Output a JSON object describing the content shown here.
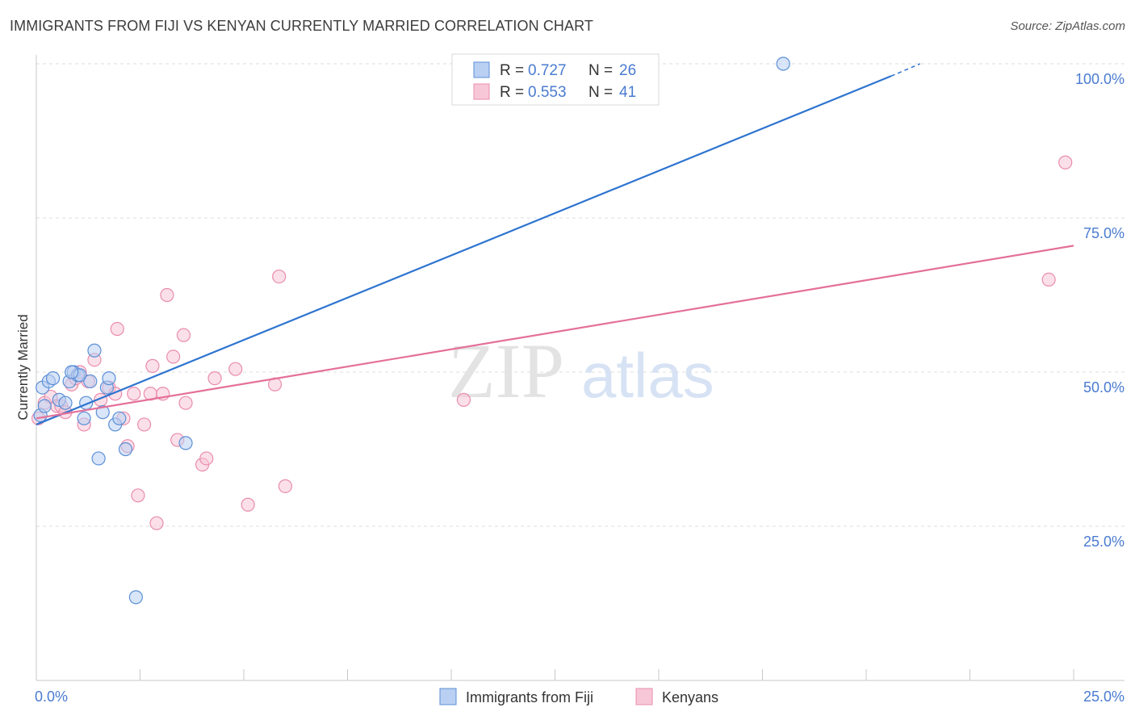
{
  "header": {
    "title": "IMMIGRANTS FROM FIJI VS KENYAN CURRENTLY MARRIED CORRELATION CHART",
    "source": "Source: ZipAtlas.com"
  },
  "watermark": {
    "zip": "ZIP",
    "atlas": "atlas"
  },
  "colors": {
    "fiji": "#5b8fd6",
    "fiji_fill": "#b9d0f3",
    "fiji_line": "#2e74d0",
    "kenyan": "#ea8cab",
    "kenyan_fill": "#f8c7d7",
    "kenyan_line": "#e4709a",
    "tick_text": "#4a7bd0"
  },
  "legend": {
    "rows": [
      {
        "r_label": "R =",
        "r_value": "0.727",
        "n_label": "N =",
        "n_value": "26"
      },
      {
        "r_label": "R =",
        "r_value": "0.553",
        "n_label": "N =",
        "n_value": "41"
      }
    ]
  },
  "bottom_legend": {
    "fiji_label": "Immigrants from Fiji",
    "kenyan_label": "Kenyans"
  },
  "chart_data": {
    "type": "scatter",
    "title": "IMMIGRANTS FROM FIJI VS KENYAN CURRENTLY MARRIED CORRELATION CHART",
    "xlabel": "",
    "ylabel": "Currently Married",
    "xlim": [
      0,
      25
    ],
    "ylim": [
      0,
      105
    ],
    "x_tick_labels": [
      {
        "value": 0,
        "label": "0.0%"
      },
      {
        "value": 25,
        "label": "25.0%"
      }
    ],
    "y_tick_labels": [
      {
        "value": 25,
        "label": "25.0%"
      },
      {
        "value": 50,
        "label": "50.0%"
      },
      {
        "value": 75,
        "label": "75.0%"
      },
      {
        "value": 100,
        "label": "100.0%"
      }
    ],
    "series": [
      {
        "name": "Immigrants from Fiji",
        "r": 0.727,
        "n": 26,
        "points": [
          [
            0.15,
            47.5
          ],
          [
            0.3,
            48.5
          ],
          [
            0.4,
            49.0
          ],
          [
            0.55,
            45.5
          ],
          [
            0.7,
            45.0
          ],
          [
            0.8,
            48.5
          ],
          [
            0.9,
            50.0
          ],
          [
            1.0,
            49.5
          ],
          [
            1.05,
            49.5
          ],
          [
            1.15,
            42.5
          ],
          [
            1.2,
            45.0
          ],
          [
            1.3,
            48.5
          ],
          [
            1.4,
            53.5
          ],
          [
            1.5,
            36.0
          ],
          [
            1.6,
            43.5
          ],
          [
            1.7,
            47.5
          ],
          [
            1.75,
            49.0
          ],
          [
            1.9,
            41.5
          ],
          [
            2.0,
            42.5
          ],
          [
            2.15,
            37.5
          ],
          [
            2.4,
            13.5
          ],
          [
            3.6,
            38.5
          ],
          [
            0.1,
            43.0
          ],
          [
            0.2,
            44.5
          ],
          [
            0.85,
            50.0
          ],
          [
            18.0,
            100.0
          ]
        ],
        "trend": {
          "x": [
            0,
            20.6
          ],
          "y": [
            41.5,
            98.0
          ],
          "dashed_to": {
            "x": 21.3,
            "y": 100.0
          }
        }
      },
      {
        "name": "Kenyans",
        "r": 0.553,
        "n": 41,
        "points": [
          [
            0.05,
            42.5
          ],
          [
            0.2,
            45.0
          ],
          [
            0.35,
            46.0
          ],
          [
            0.5,
            44.5
          ],
          [
            0.6,
            44.5
          ],
          [
            0.7,
            43.5
          ],
          [
            0.85,
            48.0
          ],
          [
            0.95,
            49.0
          ],
          [
            1.05,
            50.0
          ],
          [
            1.15,
            41.5
          ],
          [
            1.25,
            48.5
          ],
          [
            1.4,
            52.0
          ],
          [
            1.55,
            45.5
          ],
          [
            1.75,
            47.5
          ],
          [
            1.9,
            46.5
          ],
          [
            1.95,
            57.0
          ],
          [
            2.1,
            42.5
          ],
          [
            2.2,
            38.0
          ],
          [
            2.35,
            46.5
          ],
          [
            2.45,
            30.0
          ],
          [
            2.6,
            41.5
          ],
          [
            2.75,
            46.5
          ],
          [
            2.8,
            51.0
          ],
          [
            2.9,
            25.5
          ],
          [
            3.05,
            46.5
          ],
          [
            3.15,
            62.5
          ],
          [
            3.3,
            52.5
          ],
          [
            3.4,
            39.0
          ],
          [
            3.55,
            56.0
          ],
          [
            3.6,
            45.0
          ],
          [
            4.0,
            35.0
          ],
          [
            4.1,
            36.0
          ],
          [
            4.3,
            49.0
          ],
          [
            4.8,
            50.5
          ],
          [
            5.1,
            28.5
          ],
          [
            5.75,
            48.0
          ],
          [
            5.85,
            65.5
          ],
          [
            6.0,
            31.5
          ],
          [
            10.3,
            45.5
          ],
          [
            24.4,
            65.0
          ],
          [
            24.8,
            84.0
          ]
        ],
        "trend": {
          "x": [
            0,
            25
          ],
          "y": [
            42.5,
            70.5
          ]
        }
      }
    ]
  }
}
